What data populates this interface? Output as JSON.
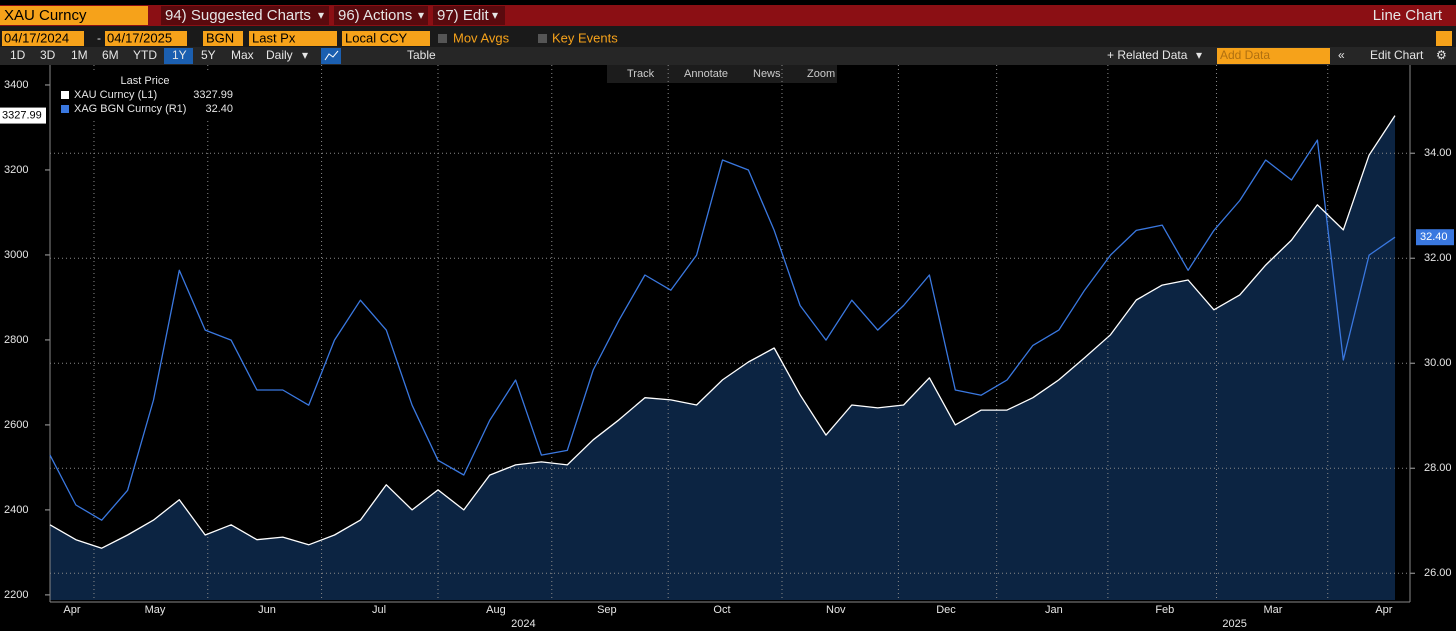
{
  "toolbar": {
    "security": "XAU Curncy",
    "menus": [
      "94) Suggested Charts",
      "96) Actions",
      "97) Edit"
    ],
    "chart_type": "Line Chart",
    "start_date": "04/17/2024",
    "end_date": "04/17/2025",
    "source": "BGN",
    "field": "Last Px",
    "currency": "Local CCY",
    "toggles": [
      "Mov Avgs",
      "Key Events"
    ],
    "periods": [
      "1D",
      "3D",
      "1M",
      "6M",
      "YTD",
      "1Y",
      "5Y",
      "Max"
    ],
    "frequency": "Daily",
    "table": "Table",
    "related": "+ Related Data",
    "add_data": "Add Data",
    "edit_chart": "Edit Chart",
    "tools": [
      "Track",
      "Annotate",
      "News",
      "Zoom"
    ]
  },
  "chart_data": {
    "type": "line",
    "legend_title": "Last Price",
    "area_fill": "#0c2442",
    "series": [
      {
        "name": "XAU Curncy (L1)",
        "color": "#ffffff",
        "axis": "y",
        "area": true,
        "values": [
          2365,
          2330,
          2310,
          2341,
          2376,
          2424,
          2341,
          2365,
          2330,
          2336,
          2318,
          2341,
          2376,
          2459,
          2400,
          2447,
          2400,
          2482,
          2506,
          2513,
          2506,
          2565,
          2612,
          2664,
          2659,
          2647,
          2706,
          2748,
          2781,
          2671,
          2576,
          2647,
          2640,
          2647,
          2711,
          2600,
          2635,
          2635,
          2664,
          2706,
          2758,
          2812,
          2894,
          2929,
          2941,
          2871,
          2906,
          2976,
          3035,
          3118,
          3059,
          3235,
          3327.99
        ]
      },
      {
        "name": "XAG BGN Curncy (R1)",
        "color": "#3a78e0",
        "axis": "y2",
        "last_label": "32.40",
        "values": [
          28.25,
          27.3,
          27.01,
          27.58,
          29.3,
          31.77,
          30.63,
          30.44,
          29.49,
          29.49,
          29.2,
          30.44,
          31.2,
          30.63,
          29.2,
          28.15,
          27.87,
          28.91,
          29.68,
          28.25,
          28.34,
          29.87,
          30.82,
          31.68,
          31.39,
          32.06,
          33.87,
          33.68,
          32.53,
          31.1,
          30.44,
          31.2,
          30.63,
          31.1,
          31.68,
          29.49,
          29.39,
          29.68,
          30.34,
          30.63,
          31.39,
          32.06,
          32.53,
          32.63,
          31.77,
          32.53,
          33.1,
          33.87,
          33.49,
          34.25,
          30.06,
          32.06,
          32.4
        ]
      }
    ],
    "xlim": [
      0,
      52
    ],
    "xticks": [
      {
        "value": 0.85,
        "label": "Apr"
      },
      {
        "value": 4.06,
        "label": "May"
      },
      {
        "value": 8.39,
        "label": "Jun"
      },
      {
        "value": 12.72,
        "label": "Jul"
      },
      {
        "value": 17.24,
        "label": "Aug"
      },
      {
        "value": 21.53,
        "label": "Sep"
      },
      {
        "value": 25.98,
        "label": "Oct"
      },
      {
        "value": 30.38,
        "label": "Nov"
      },
      {
        "value": 34.64,
        "label": "Dec"
      },
      {
        "value": 38.81,
        "label": "Jan"
      },
      {
        "value": 43.1,
        "label": "Feb"
      },
      {
        "value": 47.28,
        "label": "Mar"
      },
      {
        "value": 51.57,
        "label": "Apr"
      }
    ],
    "xgrid": [
      1.7,
      6.1,
      10.5,
      15,
      19.4,
      23.9,
      28.3,
      32.8,
      36.6,
      40.9,
      45.1,
      49.4
    ],
    "year_labels": [
      {
        "value": 18.3,
        "label": "2024"
      },
      {
        "value": 45.8,
        "label": "2025"
      }
    ],
    "ylim": [
      2188,
      3447
    ],
    "yticks": [
      2200,
      2400,
      2600,
      2800,
      3000,
      3200,
      3400
    ],
    "y2lim": [
      25.49,
      35.68
    ],
    "y2ticks": [
      {
        "value": 26,
        "label": "26.00"
      },
      {
        "value": 28,
        "label": "28.00"
      },
      {
        "value": 30,
        "label": "30.00"
      },
      {
        "value": 32,
        "label": "32.00"
      },
      {
        "value": 34,
        "label": "34.00"
      }
    ],
    "grid": true
  }
}
